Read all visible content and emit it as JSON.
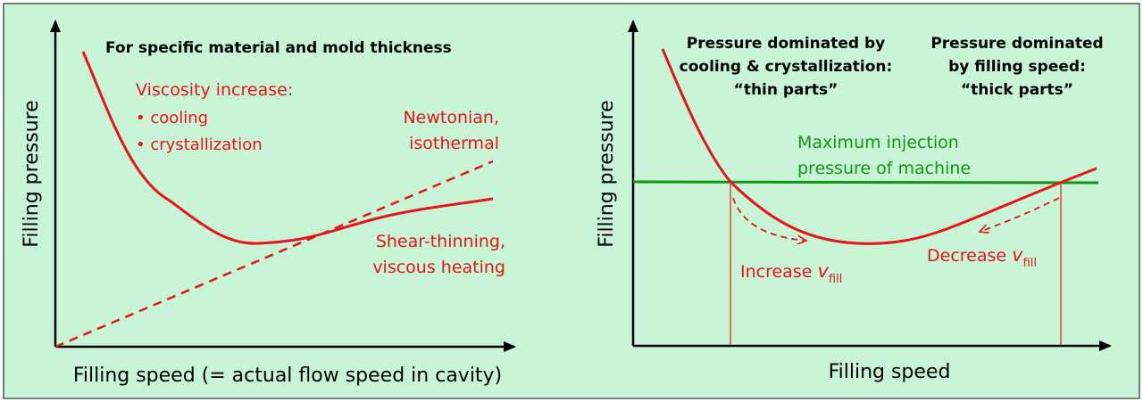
{
  "colors": {
    "background": "#c8f5d6",
    "border": "#555555",
    "axis": "#000000",
    "curve": "#e8141c",
    "max_pressure_line": "#149414",
    "text_dark": "#000000",
    "text_red": "#e8141c",
    "text_green": "#149414"
  },
  "left_panel": {
    "title": "For specific material and mold thickness",
    "y_axis_label": "Filling pressure",
    "x_axis_label": "Filling speed (= actual flow speed in cavity)",
    "viscosity_heading": "Viscosity increase:",
    "viscosity_items": [
      "• cooling",
      "• crystallization"
    ],
    "newtonian_line1": "Newtonian,",
    "newtonian_line2": "isothermal",
    "shear_line1": "Shear-thinning,",
    "shear_line2": "viscous heating"
  },
  "right_panel": {
    "y_axis_label": "Filling pressure",
    "x_axis_label": "Filling speed",
    "cooling_region": [
      "Pressure dominated by",
      "cooling & crystallization:",
      "“thin parts”"
    ],
    "speed_region": [
      "Pressure dominated",
      "by filling speed:",
      "“thick parts”"
    ],
    "max_pressure_line1": "Maximum injection",
    "max_pressure_line2": "pressure of machine",
    "increase_text": "Increase ",
    "decrease_text": "Decrease ",
    "v_symbol": "v",
    "v_subscript": "fill"
  }
}
